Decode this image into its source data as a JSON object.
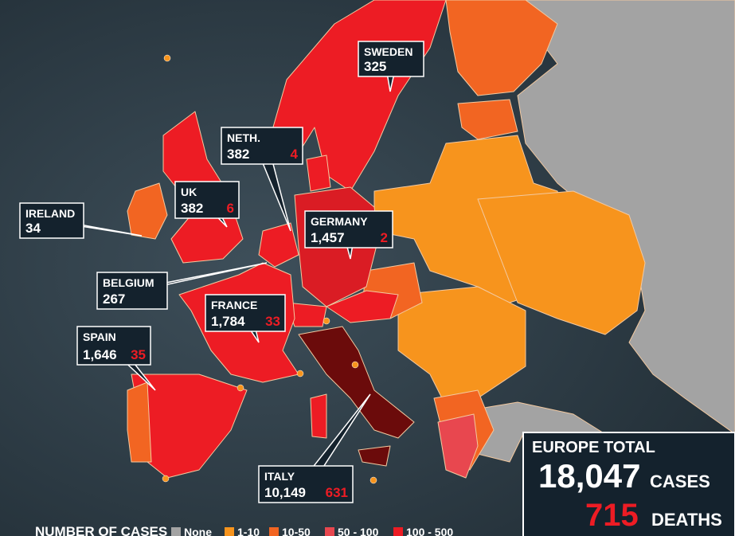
{
  "callouts": [
    {
      "name": "SWEDEN",
      "cases": "325"
    },
    {
      "name": "NETH.",
      "cases": "382",
      "deaths": "4"
    },
    {
      "name": "UK",
      "cases": "382",
      "deaths": "6"
    },
    {
      "name": "IRELAND",
      "cases": "34"
    },
    {
      "name": "GERMANY",
      "cases": "1,457",
      "deaths": "2"
    },
    {
      "name": "BELGIUM",
      "cases": "267"
    },
    {
      "name": "FRANCE",
      "cases": "1,784",
      "deaths": "33"
    },
    {
      "name": "SPAIN",
      "cases": "1,646",
      "deaths": "35"
    },
    {
      "name": "ITALY",
      "cases": "10,149",
      "deaths": "631"
    }
  ],
  "total": {
    "title": "EUROPE TOTAL",
    "cases": "18,047",
    "cases_label": "CASES",
    "deaths": "715",
    "deaths_label": "DEATHS"
  },
  "legend": {
    "title": "NUMBER OF CASES",
    "items": [
      "None",
      "1-10",
      "10-50",
      "50 - 100",
      "100 - 500"
    ]
  }
}
